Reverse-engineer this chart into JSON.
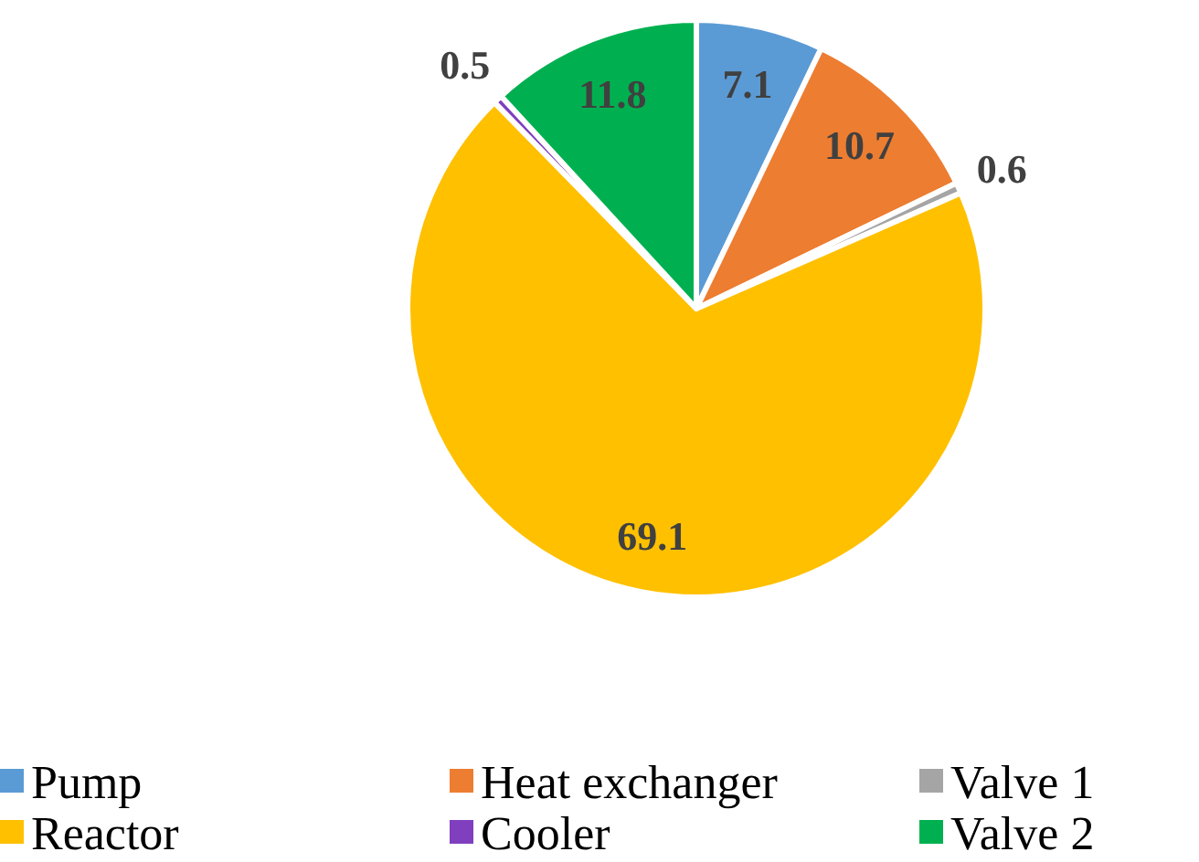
{
  "chart_data": {
    "type": "pie",
    "categories": [
      "Pump",
      "Heat exchanger",
      "Valve 1",
      "Reactor",
      "Cooler",
      "Valve 2"
    ],
    "values": [
      7.1,
      10.7,
      0.6,
      69.1,
      0.5,
      11.8
    ],
    "colors": [
      "#5b9bd5",
      "#ed7d31",
      "#a5a5a5",
      "#ffc000",
      "#7f3fbf",
      "#00b050"
    ],
    "data_labels": true,
    "legend": "bottom"
  }
}
